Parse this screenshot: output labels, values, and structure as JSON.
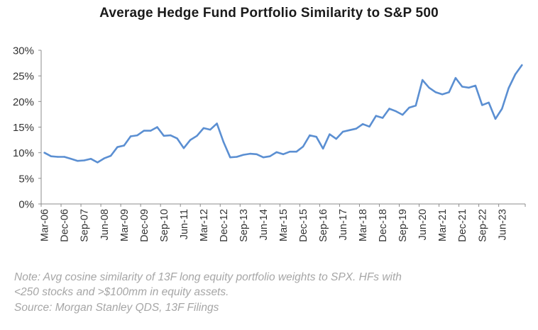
{
  "chart_data": {
    "type": "line",
    "title": "Average Hedge Fund Portfolio Similarity to S&P 500",
    "xlabel": "",
    "ylabel": "",
    "ylim": [
      0,
      30
    ],
    "y_ticks": [
      "0%",
      "5%",
      "10%",
      "15%",
      "20%",
      "25%",
      "30%"
    ],
    "y_tick_values": [
      0,
      5,
      10,
      15,
      20,
      25,
      30
    ],
    "x_tick_labels": [
      "Mar-06",
      "Dec-06",
      "Sep-07",
      "Jun-08",
      "Mar-09",
      "Dec-09",
      "Sep-10",
      "Jun-11",
      "Mar-12",
      "Dec-12",
      "Sep-13",
      "Jun-14",
      "Mar-15",
      "Dec-15",
      "Sep-16",
      "Jun-17",
      "Mar-18",
      "Dec-18",
      "Sep-19",
      "Jun-20",
      "Mar-21",
      "Dec-21",
      "Sep-22",
      "Jun-23"
    ],
    "grid": false,
    "line_color": "#5b8fd2",
    "series": [
      {
        "name": "",
        "values": [
          10.0,
          9.3,
          9.2,
          9.2,
          8.8,
          8.4,
          8.5,
          8.8,
          8.1,
          8.9,
          9.4,
          11.1,
          11.4,
          13.2,
          13.4,
          14.3,
          14.3,
          15.0,
          13.3,
          13.4,
          12.8,
          10.9,
          12.5,
          13.3,
          14.8,
          14.5,
          15.7,
          12.1,
          9.1,
          9.2,
          9.6,
          9.8,
          9.7,
          9.1,
          9.3,
          10.1,
          9.7,
          10.2,
          10.2,
          11.2,
          13.4,
          13.1,
          10.8,
          13.6,
          12.7,
          14.1,
          14.4,
          14.7,
          15.6,
          15.1,
          17.2,
          16.8,
          18.6,
          18.1,
          17.4,
          18.8,
          19.2,
          24.2,
          22.7,
          21.8,
          21.4,
          21.8,
          24.6,
          22.9,
          22.7,
          23.1,
          19.3,
          19.8,
          16.6,
          18.6,
          22.6,
          25.3,
          27.1
        ]
      }
    ]
  },
  "notes": {
    "line1": "Note: Avg cosine similarity of 13F long equity portfolio weights to SPX.  HFs with",
    "line2": "<250 stocks and >$100mm in equity assets.",
    "line3": "Source: Morgan Stanley QDS, 13F Filings"
  }
}
